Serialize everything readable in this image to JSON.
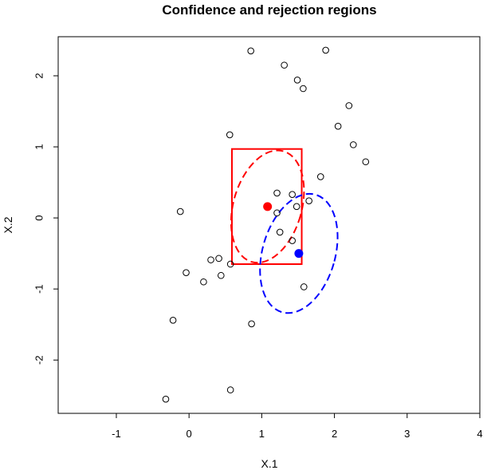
{
  "chart_data": {
    "type": "scatter",
    "title": "Confidence and rejection regions",
    "xlabel": "X.1",
    "ylabel": "X.2",
    "xlim": [
      -1.8,
      4.0
    ],
    "ylim": [
      -2.75,
      2.55
    ],
    "x_ticks": [
      -1,
      0,
      1,
      2,
      3,
      4
    ],
    "y_ticks": [
      -2,
      -1,
      0,
      1,
      2
    ],
    "x_tick_labels": [
      "-1",
      "0",
      "1",
      "2",
      "3",
      "4"
    ],
    "y_tick_labels": [
      "-2",
      "-1",
      "0",
      "1",
      "2"
    ],
    "grid": false,
    "points": [
      {
        "x": 0.85,
        "y": 2.35
      },
      {
        "x": 1.88,
        "y": 2.36
      },
      {
        "x": 1.31,
        "y": 2.15
      },
      {
        "x": 1.49,
        "y": 1.94
      },
      {
        "x": 1.57,
        "y": 1.82
      },
      {
        "x": 2.2,
        "y": 1.58
      },
      {
        "x": 2.05,
        "y": 1.29
      },
      {
        "x": 0.56,
        "y": 1.17
      },
      {
        "x": 2.26,
        "y": 1.03
      },
      {
        "x": 2.43,
        "y": 0.79
      },
      {
        "x": 1.81,
        "y": 0.58
      },
      {
        "x": 1.21,
        "y": 0.35
      },
      {
        "x": 1.42,
        "y": 0.33
      },
      {
        "x": 1.65,
        "y": 0.24
      },
      {
        "x": 1.48,
        "y": 0.16
      },
      {
        "x": -0.12,
        "y": 0.09
      },
      {
        "x": 1.21,
        "y": 0.07
      },
      {
        "x": 1.25,
        "y": -0.2
      },
      {
        "x": 1.42,
        "y": -0.32
      },
      {
        "x": 0.3,
        "y": -0.59
      },
      {
        "x": 0.41,
        "y": -0.57
      },
      {
        "x": 0.57,
        "y": -0.65
      },
      {
        "x": -0.04,
        "y": -0.77
      },
      {
        "x": 0.44,
        "y": -0.81
      },
      {
        "x": 0.2,
        "y": -0.9
      },
      {
        "x": 1.58,
        "y": -0.97
      },
      {
        "x": -0.22,
        "y": -1.44
      },
      {
        "x": 0.86,
        "y": -1.49
      },
      {
        "x": 0.57,
        "y": -2.42
      },
      {
        "x": -0.32,
        "y": -2.55
      }
    ],
    "red_point": {
      "x": 1.08,
      "y": 0.16,
      "color": "#ff0000"
    },
    "blue_point": {
      "x": 1.51,
      "y": -0.5,
      "color": "#0000ff"
    },
    "red_rectangle": {
      "x": [
        0.59,
        1.55
      ],
      "y": [
        -0.65,
        0.97
      ],
      "color": "#ff0000"
    },
    "red_ellipse": {
      "center": [
        1.08,
        0.16
      ],
      "x_radius": 0.47,
      "y_radius": 0.81,
      "rotation_deg": 16,
      "color": "#ff0000",
      "style": "dashed"
    },
    "blue_ellipse": {
      "center": [
        1.51,
        -0.5
      ],
      "x_radius": 0.5,
      "y_radius": 0.86,
      "rotation_deg": 16,
      "color": "#0000ff",
      "style": "dashed"
    }
  }
}
